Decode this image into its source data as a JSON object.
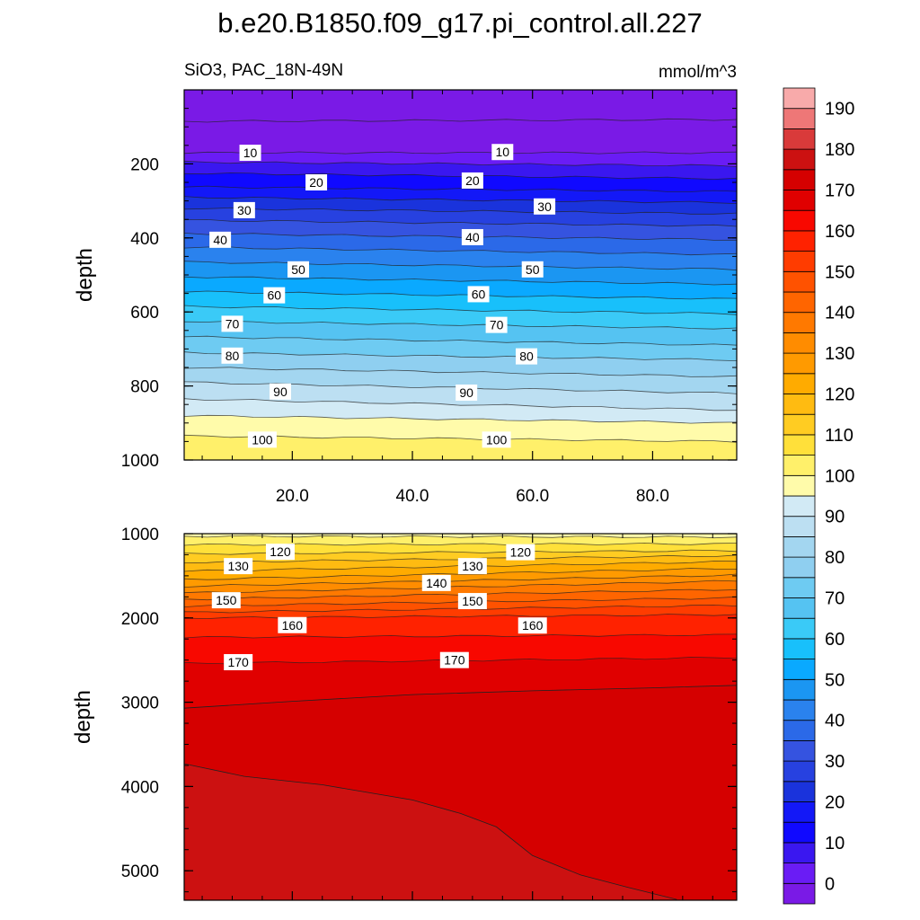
{
  "chart_data": {
    "type": "contour",
    "title": "b.e20.B1850.f09_g17.pi_control.all.227",
    "subtitle_left": "SiO3, PAC_18N-49N",
    "subtitle_right": "mmol/m^3",
    "ylabel": "depth",
    "x_range": [
      2,
      94
    ],
    "x_ticks": [
      20,
      40,
      60,
      80
    ],
    "x_tick_labels": [
      "20.0",
      "40.0",
      "60.0",
      "80.0"
    ],
    "panels": [
      {
        "name": "upper",
        "depth_range": [
          0,
          1000
        ],
        "y_tick_values": [
          200,
          400,
          600,
          800,
          1000
        ],
        "y_tick_labels": [
          "200",
          "400",
          "600",
          "800",
          "1000"
        ],
        "contour_levels": [
          0,
          5,
          10,
          15,
          20,
          25,
          30,
          35,
          40,
          45,
          50,
          55,
          60,
          65,
          70,
          75,
          80,
          85,
          90,
          95,
          100,
          105
        ],
        "contour_depth_left": [
          85,
          170,
          195,
          225,
          262,
          290,
          320,
          352,
          388,
          425,
          465,
          505,
          545,
          585,
          625,
          667,
          710,
          750,
          790,
          835,
          880,
          935
        ],
        "contour_depth_right": [
          80,
          170,
          205,
          240,
          275,
          305,
          335,
          368,
          405,
          445,
          485,
          525,
          565,
          605,
          645,
          690,
          730,
          775,
          820,
          865,
          900,
          950
        ],
        "contour_labels": [
          {
            "text": "10",
            "x": 13,
            "depth": 170
          },
          {
            "text": "10",
            "x": 55,
            "depth": 168
          },
          {
            "text": "20",
            "x": 24,
            "depth": 250
          },
          {
            "text": "20",
            "x": 50,
            "depth": 245
          },
          {
            "text": "30",
            "x": 12,
            "depth": 325
          },
          {
            "text": "30",
            "x": 62,
            "depth": 315
          },
          {
            "text": "40",
            "x": 8,
            "depth": 405
          },
          {
            "text": "40",
            "x": 50,
            "depth": 398
          },
          {
            "text": "50",
            "x": 21,
            "depth": 485
          },
          {
            "text": "50",
            "x": 60,
            "depth": 485
          },
          {
            "text": "60",
            "x": 17,
            "depth": 555
          },
          {
            "text": "60",
            "x": 51,
            "depth": 552
          },
          {
            "text": "70",
            "x": 10,
            "depth": 632
          },
          {
            "text": "70",
            "x": 54,
            "depth": 635
          },
          {
            "text": "80",
            "x": 10,
            "depth": 718
          },
          {
            "text": "80",
            "x": 59,
            "depth": 720
          },
          {
            "text": "90",
            "x": 18,
            "depth": 815
          },
          {
            "text": "90",
            "x": 49,
            "depth": 818
          },
          {
            "text": "100",
            "x": 15,
            "depth": 945
          },
          {
            "text": "100",
            "x": 54,
            "depth": 945
          }
        ]
      },
      {
        "name": "lower",
        "depth_range": [
          1000,
          5350
        ],
        "y_tick_values": [
          1000,
          2000,
          3000,
          4000,
          5000
        ],
        "y_tick_labels": [
          "1000",
          "2000",
          "3000",
          "4000",
          "5000"
        ],
        "contour_levels": [
          105,
          110,
          115,
          120,
          125,
          130,
          135,
          140,
          145,
          150,
          155,
          160,
          165,
          170
        ],
        "contour_depth_left": [
          1030,
          1130,
          1240,
          1340,
          1445,
          1545,
          1625,
          1705,
          1780,
          1860,
          1935,
          2000,
          2230,
          2540
        ],
        "contour_depth_right": [
          1040,
          1120,
          1200,
          1260,
          1330,
          1410,
          1490,
          1560,
          1660,
          1760,
          1850,
          1960,
          2200,
          2470
        ],
        "contour_labels": [
          {
            "text": "120",
            "x": 18,
            "depth": 1215
          },
          {
            "text": "120",
            "x": 58,
            "depth": 1220
          },
          {
            "text": "130",
            "x": 11,
            "depth": 1385
          },
          {
            "text": "130",
            "x": 50,
            "depth": 1385
          },
          {
            "text": "140",
            "x": 44,
            "depth": 1585
          },
          {
            "text": "150",
            "x": 9,
            "depth": 1790
          },
          {
            "text": "150",
            "x": 50,
            "depth": 1800
          },
          {
            "text": "160",
            "x": 20,
            "depth": 2085
          },
          {
            "text": "160",
            "x": 60,
            "depth": 2090
          },
          {
            "text": "170",
            "x": 11,
            "depth": 2525
          },
          {
            "text": "170",
            "x": 47,
            "depth": 2500
          }
        ],
        "boundaries": [
          {
            "level": 175,
            "points": [
              [
                2,
                3070
              ],
              [
                20,
                2990
              ],
              [
                40,
                2910
              ],
              [
                60,
                2865
              ],
              [
                80,
                2830
              ],
              [
                94,
                2800
              ]
            ]
          },
          {
            "level": 180,
            "points": [
              [
                2,
                3730
              ],
              [
                12,
                3880
              ],
              [
                25,
                3980
              ],
              [
                40,
                4160
              ],
              [
                48,
                4320
              ],
              [
                54,
                4480
              ],
              [
                60,
                4820
              ],
              [
                68,
                5050
              ],
              [
                76,
                5200
              ],
              [
                84,
                5340
              ]
            ]
          }
        ]
      }
    ],
    "colorbar": {
      "levels": [
        0,
        5,
        10,
        15,
        20,
        25,
        30,
        35,
        40,
        45,
        50,
        55,
        60,
        65,
        70,
        75,
        80,
        85,
        90,
        95,
        100,
        105,
        110,
        115,
        120,
        125,
        130,
        135,
        140,
        145,
        150,
        155,
        160,
        165,
        170,
        175,
        180,
        185,
        190,
        195
      ],
      "labels": [
        "0",
        "10",
        "20",
        "30",
        "40",
        "50",
        "60",
        "70",
        "80",
        "90",
        "100",
        "110",
        "120",
        "130",
        "140",
        "150",
        "160",
        "170",
        "180",
        "190"
      ],
      "colors": [
        "#7a1ae6",
        "#6a1cf5",
        "#3a17f0",
        "#1009ff",
        "#1318f7",
        "#1a33dc",
        "#2741e0",
        "#3553e0",
        "#2b69e8",
        "#2a82ee",
        "#1b96f2",
        "#0aa9ff",
        "#18c0fb",
        "#3acaf7",
        "#55c3f2",
        "#6ecbf2",
        "#8fcff0",
        "#a3d6f0",
        "#bcdff2",
        "#d2eaf5",
        "#fffbaa",
        "#fff06a",
        "#ffe03a",
        "#ffcc22",
        "#ffbb11",
        "#ffab00",
        "#ff9a00",
        "#ff8c00",
        "#ff7900",
        "#ff6500",
        "#ff5200",
        "#ff3c00",
        "#ff2200",
        "#f80800",
        "#e00000",
        "#d50000",
        "#cc1111",
        "#d93a3a",
        "#ee7777",
        "#f8aaaa"
      ]
    }
  }
}
